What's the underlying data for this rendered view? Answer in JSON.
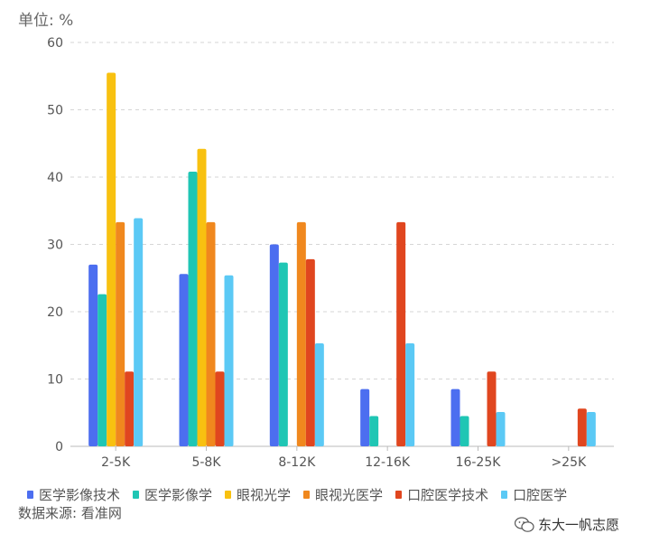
{
  "unit_label": "单位: %",
  "source_label": "数据来源: 看准网",
  "watermark_text": "东大一帆志愿",
  "chart_data": {
    "type": "bar",
    "categories": [
      "2-5K",
      "5-8K",
      "8-12K",
      "12-16K",
      "16-25K",
      ">25K"
    ],
    "ylim": [
      0,
      60
    ],
    "yticks": [
      0,
      10,
      20,
      30,
      40,
      50,
      60
    ],
    "grid": true,
    "legend_position": "bottom",
    "series": [
      {
        "name": "医学影像技术",
        "color": "#4c6ef0",
        "values": [
          27.0,
          25.6,
          30.0,
          8.5,
          8.5,
          0
        ]
      },
      {
        "name": "医学影像学",
        "color": "#1fc6b4",
        "values": [
          22.6,
          40.8,
          27.3,
          4.5,
          4.5,
          0
        ]
      },
      {
        "name": "眼视光学",
        "color": "#f8c110",
        "values": [
          55.5,
          44.2,
          0,
          0,
          0,
          0
        ]
      },
      {
        "name": "眼视光医学",
        "color": "#f0881e",
        "values": [
          33.3,
          33.3,
          33.3,
          0,
          0,
          0
        ]
      },
      {
        "name": "口腔医学技术",
        "color": "#e0461f",
        "values": [
          11.1,
          11.1,
          27.8,
          33.3,
          11.1,
          5.6
        ]
      },
      {
        "name": "口腔医学",
        "color": "#5bc9f5",
        "values": [
          33.9,
          25.4,
          15.3,
          15.3,
          5.1,
          5.1
        ]
      }
    ]
  }
}
